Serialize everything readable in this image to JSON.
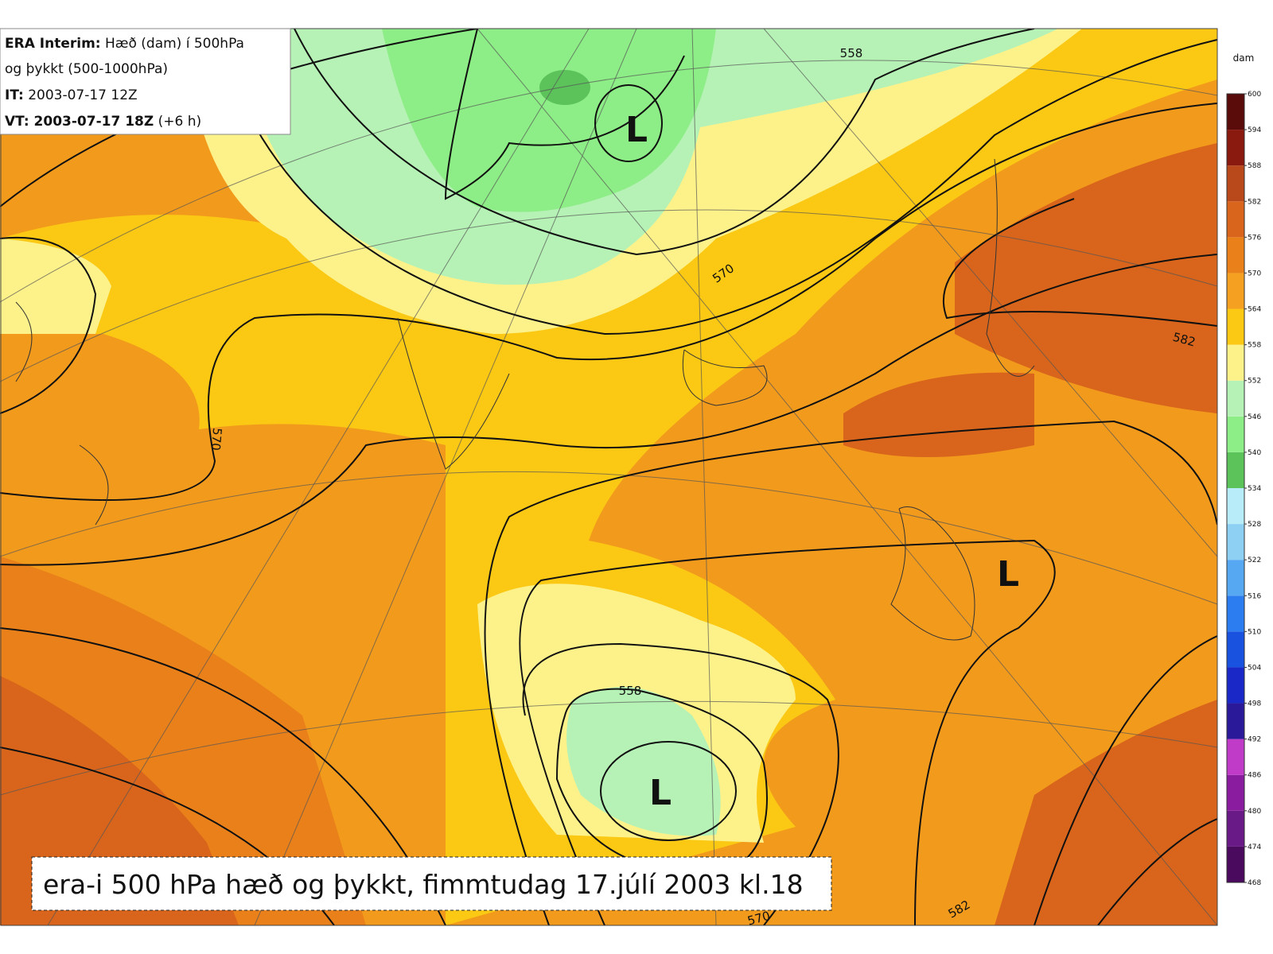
{
  "header": {
    "line1": {
      "bold": "ERA Interim:",
      "text": " Hæð (dam) í 500hPa"
    },
    "line2": "og þykkt (500-1000hPa)",
    "line3": {
      "bold": "IT:",
      "text": " 2003-07-17 12Z"
    },
    "line4": {
      "bold": "VT:",
      "bold2": " 2003-07-17 18Z",
      "text": " (+6 h)"
    }
  },
  "caption": "era-i 500 hPa hæð og þykkt, fimmtudag 17.júlí 2003 kl.18",
  "contour_labels": [
    "558",
    "570",
    "582",
    "570",
    "558",
    "582",
    "570"
  ],
  "lows": [
    "L",
    "L",
    "L"
  ],
  "colorbar": {
    "unit": "dam",
    "ticks": [
      468,
      474,
      480,
      486,
      492,
      498,
      504,
      510,
      516,
      522,
      528,
      534,
      540,
      546,
      552,
      558,
      564,
      570,
      576,
      582,
      588,
      594,
      600
    ],
    "colors": [
      "#4a0a5e",
      "#6a1a86",
      "#8a1ca0",
      "#c03cc8",
      "#2a1a9a",
      "#1a28c8",
      "#1a52e0",
      "#2c7ef0",
      "#56a8f2",
      "#8ed0f4",
      "#b8ecf8",
      "#5cc35b",
      "#8ded86",
      "#b6f2b6",
      "#fdf28a",
      "#fbc814",
      "#f5a020",
      "#e9801a",
      "#d8651b",
      "#b9481a",
      "#8a1a10",
      "#5a0c0a"
    ]
  }
}
